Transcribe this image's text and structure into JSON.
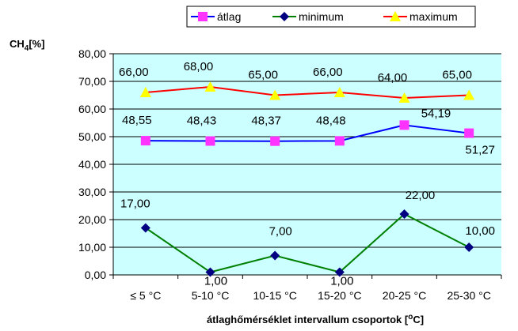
{
  "chart_data": {
    "type": "line",
    "categories": [
      "≤ 5 °C",
      "5-10 °C",
      "10-15 °C",
      "15-20 °C",
      "20-25 °C",
      "25-30 °C"
    ],
    "series": [
      {
        "name": "átlag",
        "values": [
          48.55,
          48.43,
          48.37,
          48.48,
          54.19,
          51.27
        ],
        "labels": [
          "48,55",
          "48,43",
          "48,37",
          "48,48",
          "54,19",
          "51,27"
        ],
        "line_color": "#0000ff",
        "marker_color": "#ff33ff",
        "marker": "square"
      },
      {
        "name": "minimum",
        "values": [
          17.0,
          1.0,
          7.0,
          1.0,
          22.0,
          10.0
        ],
        "labels": [
          "17,00",
          "1,00",
          "7,00",
          "1,00",
          "22,00",
          "10,00"
        ],
        "line_color": "#008000",
        "marker_color": "#000080",
        "marker": "diamond"
      },
      {
        "name": "maximum",
        "values": [
          66.0,
          68.0,
          65.0,
          66.0,
          64.0,
          65.0
        ],
        "labels": [
          "66,00",
          "68,00",
          "65,00",
          "66,00",
          "64,00",
          "65,00"
        ],
        "line_color": "#ff0000",
        "marker_color": "#ffff00",
        "marker": "triangle"
      }
    ],
    "ylim": [
      0,
      80
    ],
    "yticks": [
      "0,00",
      "10,00",
      "20,00",
      "30,00",
      "40,00",
      "50,00",
      "60,00",
      "70,00",
      "80,00"
    ],
    "ylabel_main": "CH",
    "ylabel_sub": "4",
    "ylabel_suffix": "[%]",
    "xlabel_main": "átlaghőmérséklet intervallum csoportok [",
    "xlabel_sup": "o",
    "xlabel_suffix": "C]",
    "grid": true,
    "legend_position": "top",
    "plot_background": "#ccffff"
  }
}
